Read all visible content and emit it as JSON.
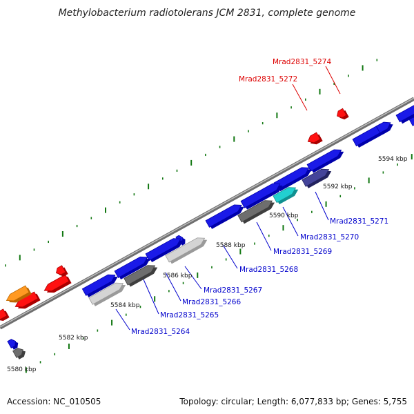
{
  "title": "Methylobacterium radiotolerans JCM 2831, complete genome",
  "footer": {
    "accession": "Accession: NC_010505",
    "summary": "Topology: circular; Length: 6,077,833 bp; Genes: 5,755"
  },
  "colors": {
    "backbone": "#888888",
    "forward_label": "#dd0000",
    "reverse_label": "#0000cc",
    "tick": "#117711"
  },
  "scale_labels": [
    "5580 kbp",
    "5582 kbp",
    "5584 kbp",
    "5586 kbp",
    "5588 kbp",
    "5590 kbp",
    "5592 kbp",
    "5594 kbp"
  ],
  "forward_labels": [
    {
      "text": "Mrad2831_5272"
    },
    {
      "text": "Mrad2831_5274"
    }
  ],
  "reverse_labels": [
    {
      "text": "Mrad2831_5264"
    },
    {
      "text": "Mrad2831_5265"
    },
    {
      "text": "Mrad2831_5266"
    },
    {
      "text": "Mrad2831_5267"
    },
    {
      "text": "Mrad2831_5268"
    },
    {
      "text": "Mrad2831_5269"
    },
    {
      "text": "Mrad2831_5270"
    },
    {
      "text": "Mrad2831_5271"
    }
  ]
}
